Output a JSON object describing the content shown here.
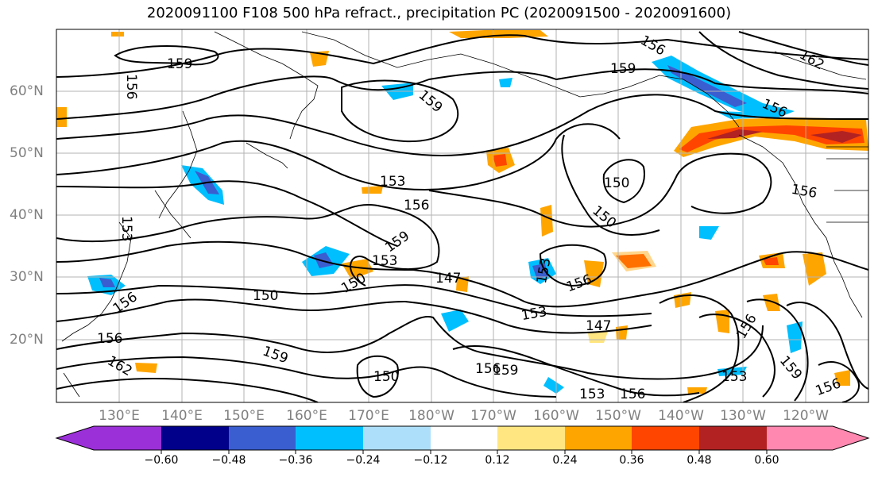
{
  "title": "2020091100 F108 500 hPa refract., precipitation PC (2020091500 - 2020091600)",
  "lat_labels": [
    "60°N",
    "50°N",
    "40°N",
    "30°N",
    "20°N"
  ],
  "lon_labels": [
    "130°E",
    "140°E",
    "150°E",
    "160°E",
    "170°E",
    "180°W",
    "170°W",
    "160°W",
    "150°W",
    "140°W",
    "130°W",
    "120°W"
  ],
  "contour_labels": [
    "159",
    "156",
    "159",
    "156",
    "162",
    "159",
    "156",
    "153",
    "150",
    "156",
    "153",
    "159",
    "153",
    "150",
    "147",
    "153",
    "156",
    "150",
    "150",
    "147",
    "156",
    "153",
    "156",
    "159",
    "162",
    "156",
    "159",
    "150",
    "156",
    "153",
    "153",
    "156",
    "156",
    "159",
    "156"
  ],
  "colorbar": {
    "ticks": [
      "−0.60",
      "−0.48",
      "−0.36",
      "−0.24",
      "−0.12",
      "0.12",
      "0.24",
      "0.36",
      "0.48",
      "0.60"
    ],
    "colors": [
      "#9b30d8",
      "#00008b",
      "#3a5ed0",
      "#00bfff",
      "#aedffa",
      "#ffffff",
      "#ffe680",
      "#ffa500",
      "#ff4500",
      "#b22222",
      "#ff88b0"
    ]
  }
}
